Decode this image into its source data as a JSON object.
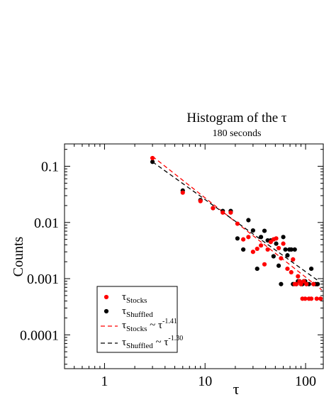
{
  "chart_data": {
    "type": "scatter",
    "title": "Histogram of the τ",
    "subtitle": "180 seconds",
    "xlabel": "τ",
    "ylabel": "Counts",
    "x_scale": "log",
    "y_scale": "log",
    "xlim": [
      0.4,
      150
    ],
    "ylim": [
      2.5e-05,
      0.25
    ],
    "x_ticks": [
      1,
      10,
      100
    ],
    "x_tick_labels": [
      "1",
      "10",
      "100"
    ],
    "y_ticks": [
      0.0001,
      0.001,
      0.01,
      0.1
    ],
    "y_tick_labels": [
      "0.0001",
      "0.001",
      "0.01",
      "0.1"
    ],
    "grid": false,
    "legend_position": "bottom-left",
    "series": [
      {
        "name": "τStocks",
        "legend_base": "τ",
        "legend_sub": "Stocks",
        "color": "#ff0000",
        "points": [
          [
            3,
            0.14
          ],
          [
            6,
            0.034
          ],
          [
            9,
            0.024
          ],
          [
            12,
            0.018
          ],
          [
            15,
            0.015
          ],
          [
            18,
            0.015
          ],
          [
            21,
            0.0095
          ],
          [
            24,
            0.005
          ],
          [
            27,
            0.0055
          ],
          [
            30,
            0.003
          ],
          [
            33,
            0.0034
          ],
          [
            36,
            0.0039
          ],
          [
            39,
            0.0018
          ],
          [
            42,
            0.0033
          ],
          [
            45,
            0.0045
          ],
          [
            48,
            0.005
          ],
          [
            51,
            0.0052
          ],
          [
            54,
            0.0035
          ],
          [
            57,
            0.0023
          ],
          [
            60,
            0.0042
          ],
          [
            66,
            0.0015
          ],
          [
            72,
            0.0013
          ],
          [
            75,
            0.0022
          ],
          [
            78,
            0.0008
          ],
          [
            81,
            0.0008
          ],
          [
            84,
            0.0011
          ],
          [
            87,
            0.0009
          ],
          [
            90,
            0.0008
          ],
          [
            93,
            0.00044
          ],
          [
            96,
            0.0009
          ],
          [
            99,
            0.00044
          ],
          [
            102,
            0.0008
          ],
          [
            108,
            0.00044
          ],
          [
            114,
            0.00044
          ],
          [
            120,
            0.0008
          ],
          [
            129,
            0.00044
          ],
          [
            141,
            0.00044
          ]
        ],
        "fit_exponent": -1.41,
        "fit_label_base": "τ",
        "fit_label_sub": "Stocks",
        "fit_label_mid": " ~ τ",
        "fit_label_sup": "-1.41",
        "fit_line": [
          [
            3,
            0.15
          ],
          [
            145,
            0.00063
          ]
        ]
      },
      {
        "name": "τShuffled",
        "legend_base": "τ",
        "legend_sub": "Shuffled",
        "color": "#000000",
        "points": [
          [
            3,
            0.12
          ],
          [
            6,
            0.037
          ],
          [
            9,
            0.025
          ],
          [
            12,
            0.018
          ],
          [
            15,
            0.016
          ],
          [
            18,
            0.016
          ],
          [
            21,
            0.0052
          ],
          [
            24,
            0.0033
          ],
          [
            27,
            0.011
          ],
          [
            30,
            0.0072
          ],
          [
            33,
            0.0015
          ],
          [
            36,
            0.0055
          ],
          [
            39,
            0.0071
          ],
          [
            42,
            0.0048
          ],
          [
            45,
            0.0048
          ],
          [
            48,
            0.0025
          ],
          [
            51,
            0.0042
          ],
          [
            54,
            0.0017
          ],
          [
            57,
            0.0008
          ],
          [
            60,
            0.0055
          ],
          [
            63,
            0.0033
          ],
          [
            66,
            0.0026
          ],
          [
            69,
            0.0033
          ],
          [
            72,
            0.0033
          ],
          [
            75,
            0.0008
          ],
          [
            78,
            0.0033
          ],
          [
            81,
            0.0008
          ],
          [
            84,
            0.0009
          ],
          [
            87,
            0.0009
          ],
          [
            90,
            0.0008
          ],
          [
            93,
            0.0008
          ],
          [
            96,
            0.0009
          ],
          [
            99,
            0.0009
          ],
          [
            102,
            0.0008
          ],
          [
            108,
            0.0008
          ],
          [
            114,
            0.0015
          ],
          [
            120,
            0.0008
          ],
          [
            126,
            0.0008
          ],
          [
            132,
            0.0008
          ]
        ],
        "fit_exponent": -1.3,
        "fit_label_base": "τ",
        "fit_label_sub": "Shuffled",
        "fit_label_mid": " ~ τ",
        "fit_label_sup": "-1.30",
        "fit_line": [
          [
            3,
            0.12
          ],
          [
            130,
            0.00095
          ]
        ]
      }
    ]
  }
}
